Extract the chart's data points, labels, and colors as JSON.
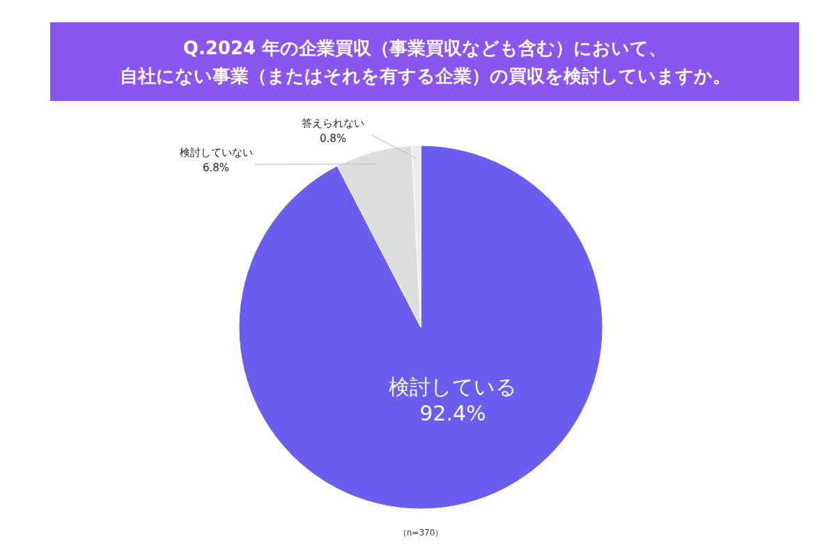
{
  "chart_data": {
    "type": "pie",
    "title": [
      "Q.2024 年の企業買収（事業買収なども含む）において、",
      "自社にない事業（またはそれを有する企業）の買収を検討していますか。"
    ],
    "categories": [
      "検討している",
      "検討していない",
      "答えられない"
    ],
    "values": [
      92.4,
      6.8,
      0.8
    ],
    "value_labels": [
      "92.4%",
      "6.8%",
      "0.8%"
    ],
    "colors": [
      "#6a5ef0",
      "#dcdddd",
      "#ececec"
    ],
    "annotations": [
      "（n=370）"
    ]
  }
}
